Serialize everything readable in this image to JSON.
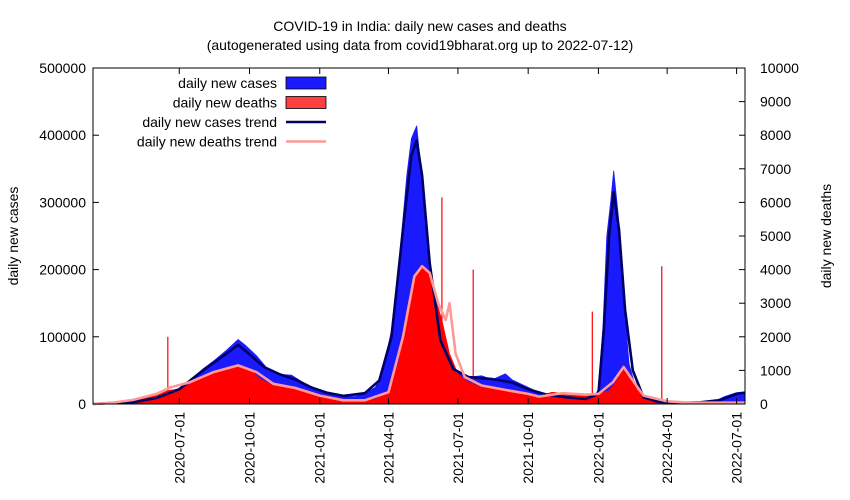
{
  "chart_data": {
    "type": "area",
    "title": "COVID-19 in India: daily new cases and deaths",
    "subtitle": "(autogenerated using data from covid19bharat.org up to 2022-07-12)",
    "ylabel_left": "daily new cases",
    "ylabel_right": "daily new deaths",
    "xlabel": "",
    "date_range": [
      "2020-03-10",
      "2022-07-12"
    ],
    "ylim_left": [
      0,
      500000
    ],
    "ylim_right": [
      0,
      10000
    ],
    "y_ticks_left": [
      0,
      100000,
      200000,
      300000,
      400000,
      500000
    ],
    "y_tick_labels_left": [
      "0",
      "100000",
      "200000",
      "300000",
      "400000",
      "500000"
    ],
    "y_ticks_right": [
      0,
      1000,
      2000,
      3000,
      4000,
      5000,
      6000,
      7000,
      8000,
      9000,
      10000
    ],
    "y_tick_labels_right": [
      "0",
      "1000",
      "2000",
      "3000",
      "4000",
      "5000",
      "6000",
      "7000",
      "8000",
      "9000",
      "10000"
    ],
    "x_ticks": [
      "2020-07-01",
      "2020-10-01",
      "2021-01-01",
      "2021-04-01",
      "2021-07-01",
      "2021-10-01",
      "2022-01-01",
      "2022-04-01",
      "2022-07-01"
    ],
    "legend_position": "top-left",
    "legend": [
      {
        "label": "daily new cases",
        "kind": "box",
        "color": "#1a1aff"
      },
      {
        "label": "daily new deaths",
        "kind": "box",
        "color": "#ff4040"
      },
      {
        "label": "daily new cases trend",
        "kind": "line",
        "color": "#000066"
      },
      {
        "label": "daily new deaths trend",
        "kind": "line",
        "color": "#ff9999"
      }
    ],
    "series": [
      {
        "name": "daily new cases",
        "axis": "left",
        "color": "#1a1aff",
        "points": [
          [
            "2020-03-10",
            0
          ],
          [
            "2020-04-01",
            1500
          ],
          [
            "2020-05-01",
            2000
          ],
          [
            "2020-06-01",
            8000
          ],
          [
            "2020-07-01",
            20000
          ],
          [
            "2020-07-15",
            32000
          ],
          [
            "2020-08-01",
            52000
          ],
          [
            "2020-08-15",
            64000
          ],
          [
            "2020-09-01",
            80000
          ],
          [
            "2020-09-16",
            96000
          ],
          [
            "2020-09-25",
            88000
          ],
          [
            "2020-10-10",
            72000
          ],
          [
            "2020-10-25",
            52000
          ],
          [
            "2020-11-10",
            44000
          ],
          [
            "2020-11-25",
            43000
          ],
          [
            "2020-12-10",
            32000
          ],
          [
            "2020-12-25",
            24000
          ],
          [
            "2021-01-10",
            18000
          ],
          [
            "2021-02-01",
            12000
          ],
          [
            "2021-02-15",
            11000
          ],
          [
            "2021-03-01",
            15000
          ],
          [
            "2021-03-15",
            25000
          ],
          [
            "2021-03-25",
            50000
          ],
          [
            "2021-04-05",
            110000
          ],
          [
            "2021-04-15",
            210000
          ],
          [
            "2021-04-25",
            340000
          ],
          [
            "2021-05-01",
            395000
          ],
          [
            "2021-05-08",
            414000
          ],
          [
            "2021-05-15",
            330000
          ],
          [
            "2021-05-22",
            250000
          ],
          [
            "2021-06-01",
            130000
          ],
          [
            "2021-06-10",
            90000
          ],
          [
            "2021-06-20",
            55000
          ],
          [
            "2021-07-01",
            46000
          ],
          [
            "2021-07-15",
            40000
          ],
          [
            "2021-08-01",
            42000
          ],
          [
            "2021-08-15",
            36000
          ],
          [
            "2021-09-01",
            45000
          ],
          [
            "2021-09-10",
            36000
          ],
          [
            "2021-09-25",
            28000
          ],
          [
            "2021-10-10",
            20000
          ],
          [
            "2021-10-25",
            14000
          ],
          [
            "2021-11-10",
            12000
          ],
          [
            "2021-11-25",
            10000
          ],
          [
            "2021-12-10",
            8000
          ],
          [
            "2021-12-25",
            7000
          ],
          [
            "2022-01-01",
            22000
          ],
          [
            "2022-01-07",
            115000
          ],
          [
            "2022-01-12",
            250000
          ],
          [
            "2022-01-17",
            300000
          ],
          [
            "2022-01-21",
            347000
          ],
          [
            "2022-01-27",
            280000
          ],
          [
            "2022-02-03",
            160000
          ],
          [
            "2022-02-10",
            60000
          ],
          [
            "2022-02-20",
            20000
          ],
          [
            "2022-03-01",
            8000
          ],
          [
            "2022-03-15",
            3000
          ],
          [
            "2022-04-01",
            1200
          ],
          [
            "2022-04-15",
            1000
          ],
          [
            "2022-05-01",
            3000
          ],
          [
            "2022-05-20",
            2000
          ],
          [
            "2022-06-01",
            3500
          ],
          [
            "2022-06-15",
            11000
          ],
          [
            "2022-07-01",
            17000
          ],
          [
            "2022-07-12",
            18000
          ]
        ]
      },
      {
        "name": "daily new deaths",
        "axis": "right",
        "color": "#ff0000",
        "points": [
          [
            "2020-03-10",
            0
          ],
          [
            "2020-04-01",
            30
          ],
          [
            "2020-05-01",
            100
          ],
          [
            "2020-06-01",
            250
          ],
          [
            "2020-06-16",
            400
          ],
          [
            "2020-07-01",
            450
          ],
          [
            "2020-07-15",
            600
          ],
          [
            "2020-08-01",
            800
          ],
          [
            "2020-08-15",
            950
          ],
          [
            "2020-09-01",
            1050
          ],
          [
            "2020-09-16",
            1150
          ],
          [
            "2020-10-01",
            1050
          ],
          [
            "2020-10-15",
            750
          ],
          [
            "2020-11-01",
            550
          ],
          [
            "2020-11-15",
            500
          ],
          [
            "2020-12-01",
            480
          ],
          [
            "2020-12-15",
            350
          ],
          [
            "2021-01-01",
            250
          ],
          [
            "2021-01-15",
            180
          ],
          [
            "2021-02-01",
            110
          ],
          [
            "2021-02-15",
            100
          ],
          [
            "2021-03-01",
            110
          ],
          [
            "2021-03-15",
            150
          ],
          [
            "2021-04-01",
            350
          ],
          [
            "2021-04-15",
            1300
          ],
          [
            "2021-04-25",
            2800
          ],
          [
            "2021-05-05",
            3800
          ],
          [
            "2021-05-15",
            4100
          ],
          [
            "2021-05-25",
            3900
          ],
          [
            "2021-06-01",
            3200
          ],
          [
            "2021-06-10",
            2500
          ],
          [
            "2021-06-20",
            1500
          ],
          [
            "2021-07-01",
            900
          ],
          [
            "2021-07-15",
            650
          ],
          [
            "2021-08-01",
            500
          ],
          [
            "2021-08-15",
            450
          ],
          [
            "2021-09-01",
            420
          ],
          [
            "2021-09-15",
            380
          ],
          [
            "2021-10-01",
            300
          ],
          [
            "2021-10-15",
            220
          ],
          [
            "2021-11-01",
            350
          ],
          [
            "2021-11-15",
            320
          ],
          [
            "2021-12-01",
            300
          ],
          [
            "2021-12-15",
            280
          ],
          [
            "2022-01-01",
            300
          ],
          [
            "2022-01-15",
            400
          ],
          [
            "2022-01-25",
            700
          ],
          [
            "2022-02-03",
            1050
          ],
          [
            "2022-02-10",
            900
          ],
          [
            "2022-02-20",
            450
          ],
          [
            "2022-03-01",
            200
          ],
          [
            "2022-03-15",
            100
          ],
          [
            "2022-04-01",
            60
          ],
          [
            "2022-05-01",
            40
          ],
          [
            "2022-06-01",
            30
          ],
          [
            "2022-07-01",
            40
          ],
          [
            "2022-07-12",
            40
          ]
        ]
      },
      {
        "name": "daily new cases trend",
        "axis": "left",
        "color": "#000066",
        "points": [
          [
            "2020-03-10",
            0
          ],
          [
            "2020-04-01",
            1500
          ],
          [
            "2020-05-01",
            2500
          ],
          [
            "2020-06-01",
            9000
          ],
          [
            "2020-07-01",
            22000
          ],
          [
            "2020-08-01",
            50000
          ],
          [
            "2020-09-01",
            75000
          ],
          [
            "2020-09-16",
            88000
          ],
          [
            "2020-10-01",
            74000
          ],
          [
            "2020-10-20",
            55000
          ],
          [
            "2020-11-10",
            44000
          ],
          [
            "2020-12-01",
            36000
          ],
          [
            "2020-12-20",
            25000
          ],
          [
            "2021-01-10",
            17000
          ],
          [
            "2021-02-01",
            12000
          ],
          [
            "2021-03-01",
            16000
          ],
          [
            "2021-03-20",
            35000
          ],
          [
            "2021-04-05",
            100000
          ],
          [
            "2021-04-20",
            260000
          ],
          [
            "2021-05-01",
            370000
          ],
          [
            "2021-05-08",
            392000
          ],
          [
            "2021-05-15",
            340000
          ],
          [
            "2021-05-25",
            210000
          ],
          [
            "2021-06-08",
            95000
          ],
          [
            "2021-06-25",
            52000
          ],
          [
            "2021-07-15",
            40000
          ],
          [
            "2021-08-15",
            37000
          ],
          [
            "2021-09-10",
            32000
          ],
          [
            "2021-10-01",
            22000
          ],
          [
            "2021-10-25",
            14000
          ],
          [
            "2021-11-20",
            10000
          ],
          [
            "2021-12-15",
            7500
          ],
          [
            "2022-01-01",
            15000
          ],
          [
            "2022-01-08",
            110000
          ],
          [
            "2022-01-15",
            250000
          ],
          [
            "2022-01-21",
            315000
          ],
          [
            "2022-01-28",
            260000
          ],
          [
            "2022-02-05",
            140000
          ],
          [
            "2022-02-15",
            50000
          ],
          [
            "2022-03-01",
            10000
          ],
          [
            "2022-03-20",
            3500
          ],
          [
            "2022-04-15",
            1500
          ],
          [
            "2022-05-15",
            2500
          ],
          [
            "2022-06-10",
            6000
          ],
          [
            "2022-07-01",
            15000
          ],
          [
            "2022-07-12",
            17000
          ]
        ]
      },
      {
        "name": "daily new deaths trend",
        "axis": "right",
        "color": "#ff9999",
        "points": [
          [
            "2020-03-10",
            0
          ],
          [
            "2020-04-01",
            30
          ],
          [
            "2020-05-01",
            120
          ],
          [
            "2020-06-01",
            300
          ],
          [
            "2020-06-20",
            500
          ],
          [
            "2020-07-15",
            650
          ],
          [
            "2020-08-15",
            950
          ],
          [
            "2020-09-16",
            1150
          ],
          [
            "2020-10-10",
            950
          ],
          [
            "2020-11-01",
            600
          ],
          [
            "2020-12-01",
            470
          ],
          [
            "2021-01-01",
            250
          ],
          [
            "2021-02-01",
            110
          ],
          [
            "2021-03-01",
            110
          ],
          [
            "2021-04-01",
            350
          ],
          [
            "2021-04-20",
            2000
          ],
          [
            "2021-05-05",
            3800
          ],
          [
            "2021-05-15",
            4100
          ],
          [
            "2021-05-25",
            3900
          ],
          [
            "2021-06-05",
            3000
          ],
          [
            "2021-06-15",
            2500
          ],
          [
            "2021-06-20",
            3000
          ],
          [
            "2021-06-28",
            1500
          ],
          [
            "2021-07-10",
            800
          ],
          [
            "2021-08-01",
            550
          ],
          [
            "2021-09-01",
            420
          ],
          [
            "2021-10-01",
            300
          ],
          [
            "2021-10-15",
            220
          ],
          [
            "2021-11-15",
            320
          ],
          [
            "2021-12-15",
            280
          ],
          [
            "2022-01-01",
            300
          ],
          [
            "2022-01-20",
            650
          ],
          [
            "2022-02-03",
            1100
          ],
          [
            "2022-02-15",
            700
          ],
          [
            "2022-03-01",
            250
          ],
          [
            "2022-04-01",
            80
          ],
          [
            "2022-05-01",
            40
          ],
          [
            "2022-07-12",
            40
          ]
        ]
      }
    ],
    "death_spikes": [
      {
        "date": "2020-06-16",
        "value": 2000
      },
      {
        "date": "2021-06-10",
        "value": 6150
      },
      {
        "date": "2021-07-21",
        "value": 4000
      },
      {
        "date": "2021-12-24",
        "value": 2750
      },
      {
        "date": "2022-03-25",
        "value": 4100
      }
    ]
  }
}
